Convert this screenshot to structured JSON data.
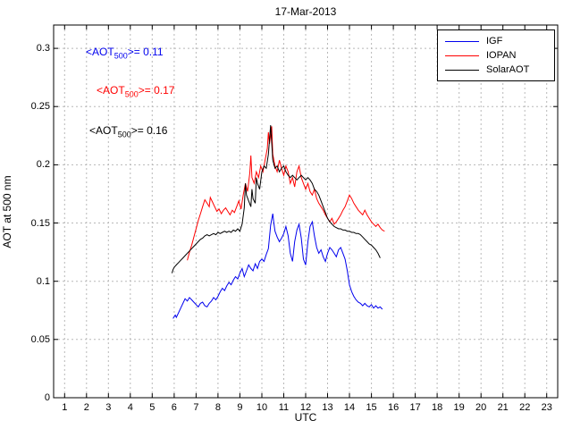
{
  "title": "17-Mar-2013",
  "xlabel": "UTC",
  "ylabel": "AOT at 500 nm",
  "chart_data": {
    "type": "line",
    "title": "17-Mar-2013",
    "xlabel": "UTC",
    "ylabel": "AOT at 500 nm",
    "xlim": [
      0.5,
      23.5
    ],
    "ylim": [
      0,
      0.32
    ],
    "xticks": [
      1,
      2,
      3,
      4,
      5,
      6,
      7,
      8,
      9,
      10,
      11,
      12,
      13,
      14,
      15,
      16,
      17,
      18,
      19,
      20,
      21,
      22,
      23
    ],
    "xtick_labels": [
      "1",
      "2",
      "3",
      "4",
      "5",
      "6",
      "7",
      "8",
      "9",
      "10",
      "11",
      "12",
      "13",
      "14",
      "15",
      "16",
      "17",
      "18",
      "19",
      "20",
      "21",
      "22",
      "23"
    ],
    "yticks": [
      0,
      0.05,
      0.1,
      0.15,
      0.2,
      0.25,
      0.3
    ],
    "ytick_labels": [
      "0",
      "0.05",
      "0.1",
      "0.15",
      "0.2",
      "0.25",
      "0.3"
    ],
    "grid": true,
    "legend_position": "top-right",
    "grid_color": "#b8b8b8",
    "axis_color": "#000000",
    "series": [
      {
        "name": "IGF",
        "color": "#0000ee",
        "mean_aot_500": 0.11,
        "points": [
          [
            5.95,
            0.068
          ],
          [
            6.05,
            0.071
          ],
          [
            6.1,
            0.069
          ],
          [
            6.2,
            0.073
          ],
          [
            6.3,
            0.077
          ],
          [
            6.4,
            0.081
          ],
          [
            6.5,
            0.085
          ],
          [
            6.6,
            0.083
          ],
          [
            6.7,
            0.086
          ],
          [
            6.8,
            0.084
          ],
          [
            6.9,
            0.082
          ],
          [
            7.0,
            0.08
          ],
          [
            7.1,
            0.078
          ],
          [
            7.2,
            0.081
          ],
          [
            7.3,
            0.082
          ],
          [
            7.4,
            0.079
          ],
          [
            7.5,
            0.078
          ],
          [
            7.6,
            0.081
          ],
          [
            7.7,
            0.083
          ],
          [
            7.8,
            0.086
          ],
          [
            7.9,
            0.084
          ],
          [
            8.0,
            0.087
          ],
          [
            8.1,
            0.091
          ],
          [
            8.2,
            0.094
          ],
          [
            8.3,
            0.092
          ],
          [
            8.4,
            0.096
          ],
          [
            8.5,
            0.099
          ],
          [
            8.6,
            0.097
          ],
          [
            8.7,
            0.101
          ],
          [
            8.8,
            0.104
          ],
          [
            8.9,
            0.102
          ],
          [
            9.0,
            0.107
          ],
          [
            9.1,
            0.111
          ],
          [
            9.2,
            0.104
          ],
          [
            9.3,
            0.109
          ],
          [
            9.4,
            0.114
          ],
          [
            9.5,
            0.111
          ],
          [
            9.6,
            0.109
          ],
          [
            9.7,
            0.115
          ],
          [
            9.8,
            0.111
          ],
          [
            9.9,
            0.117
          ],
          [
            10.0,
            0.119
          ],
          [
            10.1,
            0.117
          ],
          [
            10.2,
            0.123
          ],
          [
            10.3,
            0.128
          ],
          [
            10.4,
            0.148
          ],
          [
            10.5,
            0.158
          ],
          [
            10.55,
            0.15
          ],
          [
            10.6,
            0.143
          ],
          [
            10.7,
            0.138
          ],
          [
            10.8,
            0.134
          ],
          [
            10.9,
            0.137
          ],
          [
            11.0,
            0.141
          ],
          [
            11.1,
            0.147
          ],
          [
            11.2,
            0.139
          ],
          [
            11.3,
            0.124
          ],
          [
            11.4,
            0.117
          ],
          [
            11.5,
            0.134
          ],
          [
            11.6,
            0.144
          ],
          [
            11.7,
            0.149
          ],
          [
            11.8,
            0.137
          ],
          [
            11.9,
            0.119
          ],
          [
            12.0,
            0.114
          ],
          [
            12.1,
            0.134
          ],
          [
            12.2,
            0.147
          ],
          [
            12.3,
            0.151
          ],
          [
            12.4,
            0.139
          ],
          [
            12.5,
            0.129
          ],
          [
            12.6,
            0.124
          ],
          [
            12.7,
            0.127
          ],
          [
            12.8,
            0.121
          ],
          [
            12.9,
            0.117
          ],
          [
            13.0,
            0.124
          ],
          [
            13.1,
            0.129
          ],
          [
            13.2,
            0.127
          ],
          [
            13.3,
            0.124
          ],
          [
            13.4,
            0.121
          ],
          [
            13.5,
            0.127
          ],
          [
            13.6,
            0.129
          ],
          [
            13.7,
            0.124
          ],
          [
            13.8,
            0.119
          ],
          [
            13.9,
            0.109
          ],
          [
            14.0,
            0.097
          ],
          [
            14.1,
            0.091
          ],
          [
            14.2,
            0.087
          ],
          [
            14.3,
            0.084
          ],
          [
            14.4,
            0.082
          ],
          [
            14.5,
            0.081
          ],
          [
            14.6,
            0.079
          ],
          [
            14.7,
            0.081
          ],
          [
            14.8,
            0.079
          ],
          [
            14.9,
            0.078
          ],
          [
            15.0,
            0.08
          ],
          [
            15.1,
            0.077
          ],
          [
            15.2,
            0.079
          ],
          [
            15.3,
            0.077
          ],
          [
            15.4,
            0.078
          ],
          [
            15.5,
            0.076
          ]
        ]
      },
      {
        "name": "IOPAN",
        "color": "#ff0000",
        "mean_aot_500": 0.17,
        "points": [
          [
            6.6,
            0.118
          ],
          [
            6.7,
            0.125
          ],
          [
            6.8,
            0.131
          ],
          [
            6.9,
            0.138
          ],
          [
            7.0,
            0.145
          ],
          [
            7.1,
            0.152
          ],
          [
            7.2,
            0.158
          ],
          [
            7.3,
            0.164
          ],
          [
            7.4,
            0.17
          ],
          [
            7.5,
            0.167
          ],
          [
            7.6,
            0.164
          ],
          [
            7.65,
            0.172
          ],
          [
            7.75,
            0.168
          ],
          [
            7.85,
            0.164
          ],
          [
            7.95,
            0.16
          ],
          [
            8.05,
            0.162
          ],
          [
            8.15,
            0.158
          ],
          [
            8.25,
            0.161
          ],
          [
            8.35,
            0.163
          ],
          [
            8.45,
            0.16
          ],
          [
            8.55,
            0.157
          ],
          [
            8.65,
            0.161
          ],
          [
            8.75,
            0.159
          ],
          [
            8.85,
            0.164
          ],
          [
            8.95,
            0.169
          ],
          [
            9.05,
            0.162
          ],
          [
            9.15,
            0.174
          ],
          [
            9.25,
            0.184
          ],
          [
            9.35,
            0.177
          ],
          [
            9.45,
            0.193
          ],
          [
            9.5,
            0.208
          ],
          [
            9.55,
            0.189
          ],
          [
            9.65,
            0.184
          ],
          [
            9.75,
            0.194
          ],
          [
            9.85,
            0.189
          ],
          [
            9.95,
            0.199
          ],
          [
            10.05,
            0.194
          ],
          [
            10.15,
            0.204
          ],
          [
            10.25,
            0.214
          ],
          [
            10.3,
            0.228
          ],
          [
            10.35,
            0.218
          ],
          [
            10.45,
            0.233
          ],
          [
            10.5,
            0.209
          ],
          [
            10.6,
            0.199
          ],
          [
            10.7,
            0.194
          ],
          [
            10.8,
            0.204
          ],
          [
            10.9,
            0.197
          ],
          [
            11.0,
            0.191
          ],
          [
            11.1,
            0.199
          ],
          [
            11.2,
            0.194
          ],
          [
            11.3,
            0.184
          ],
          [
            11.4,
            0.189
          ],
          [
            11.5,
            0.181
          ],
          [
            11.6,
            0.194
          ],
          [
            11.7,
            0.199
          ],
          [
            11.8,
            0.189
          ],
          [
            11.9,
            0.184
          ],
          [
            12.0,
            0.179
          ],
          [
            12.1,
            0.184
          ],
          [
            12.2,
            0.177
          ],
          [
            12.3,
            0.174
          ],
          [
            12.4,
            0.179
          ],
          [
            12.5,
            0.171
          ],
          [
            12.6,
            0.167
          ],
          [
            12.7,
            0.164
          ],
          [
            12.8,
            0.161
          ],
          [
            12.9,
            0.157
          ],
          [
            13.0,
            0.154
          ],
          [
            13.1,
            0.151
          ],
          [
            13.2,
            0.154
          ],
          [
            13.3,
            0.149
          ],
          [
            13.4,
            0.151
          ],
          [
            13.5,
            0.154
          ],
          [
            13.6,
            0.157
          ],
          [
            13.7,
            0.161
          ],
          [
            13.8,
            0.164
          ],
          [
            13.9,
            0.169
          ],
          [
            14.0,
            0.174
          ],
          [
            14.1,
            0.171
          ],
          [
            14.2,
            0.167
          ],
          [
            14.3,
            0.164
          ],
          [
            14.4,
            0.161
          ],
          [
            14.5,
            0.159
          ],
          [
            14.6,
            0.157
          ],
          [
            14.7,
            0.161
          ],
          [
            14.8,
            0.157
          ],
          [
            14.9,
            0.154
          ],
          [
            15.0,
            0.151
          ],
          [
            15.1,
            0.149
          ],
          [
            15.2,
            0.147
          ],
          [
            15.3,
            0.149
          ],
          [
            15.4,
            0.146
          ],
          [
            15.5,
            0.144
          ],
          [
            15.6,
            0.143
          ]
        ]
      },
      {
        "name": "SolarAOT",
        "color": "#000000",
        "mean_aot_500": 0.16,
        "points": [
          [
            5.9,
            0.107
          ],
          [
            5.95,
            0.11
          ],
          [
            6.0,
            0.112
          ],
          [
            6.1,
            0.114
          ],
          [
            6.2,
            0.116
          ],
          [
            6.3,
            0.118
          ],
          [
            6.4,
            0.12
          ],
          [
            6.5,
            0.122
          ],
          [
            6.6,
            0.124
          ],
          [
            6.7,
            0.126
          ],
          [
            6.8,
            0.128
          ],
          [
            6.9,
            0.13
          ],
          [
            7.0,
            0.132
          ],
          [
            7.1,
            0.134
          ],
          [
            7.2,
            0.136
          ],
          [
            7.3,
            0.137
          ],
          [
            7.4,
            0.139
          ],
          [
            7.5,
            0.14
          ],
          [
            7.6,
            0.139
          ],
          [
            7.7,
            0.14
          ],
          [
            7.8,
            0.141
          ],
          [
            7.9,
            0.14
          ],
          [
            8.0,
            0.142
          ],
          [
            8.1,
            0.141
          ],
          [
            8.2,
            0.142
          ],
          [
            8.3,
            0.143
          ],
          [
            8.4,
            0.142
          ],
          [
            8.5,
            0.143
          ],
          [
            8.6,
            0.142
          ],
          [
            8.7,
            0.144
          ],
          [
            8.8,
            0.143
          ],
          [
            8.9,
            0.145
          ],
          [
            9.0,
            0.143
          ],
          [
            9.1,
            0.149
          ],
          [
            9.2,
            0.163
          ],
          [
            9.25,
            0.184
          ],
          [
            9.3,
            0.174
          ],
          [
            9.4,
            0.169
          ],
          [
            9.5,
            0.164
          ],
          [
            9.55,
            0.179
          ],
          [
            9.6,
            0.171
          ],
          [
            9.7,
            0.167
          ],
          [
            9.75,
            0.189
          ],
          [
            9.8,
            0.184
          ],
          [
            9.9,
            0.179
          ],
          [
            10.0,
            0.194
          ],
          [
            10.1,
            0.199
          ],
          [
            10.2,
            0.197
          ],
          [
            10.3,
            0.209
          ],
          [
            10.4,
            0.234
          ],
          [
            10.45,
            0.219
          ],
          [
            10.5,
            0.204
          ],
          [
            10.6,
            0.197
          ],
          [
            10.7,
            0.199
          ],
          [
            10.8,
            0.194
          ],
          [
            10.9,
            0.197
          ],
          [
            11.0,
            0.199
          ],
          [
            11.1,
            0.194
          ],
          [
            11.2,
            0.191
          ],
          [
            11.3,
            0.189
          ],
          [
            11.4,
            0.191
          ],
          [
            11.5,
            0.189
          ],
          [
            11.6,
            0.187
          ],
          [
            11.7,
            0.189
          ],
          [
            11.8,
            0.191
          ],
          [
            11.9,
            0.189
          ],
          [
            12.0,
            0.187
          ],
          [
            12.1,
            0.189
          ],
          [
            12.2,
            0.187
          ],
          [
            12.3,
            0.184
          ],
          [
            12.4,
            0.179
          ],
          [
            12.5,
            0.177
          ],
          [
            12.6,
            0.174
          ],
          [
            12.7,
            0.169
          ],
          [
            12.8,
            0.164
          ],
          [
            12.9,
            0.159
          ],
          [
            13.0,
            0.154
          ],
          [
            13.1,
            0.151
          ],
          [
            13.2,
            0.149
          ],
          [
            13.3,
            0.147
          ],
          [
            13.4,
            0.146
          ],
          [
            13.5,
            0.145
          ],
          [
            13.6,
            0.145
          ],
          [
            13.7,
            0.144
          ],
          [
            13.8,
            0.144
          ],
          [
            13.9,
            0.143
          ],
          [
            14.0,
            0.143
          ],
          [
            14.1,
            0.142
          ],
          [
            14.2,
            0.142
          ],
          [
            14.3,
            0.141
          ],
          [
            14.4,
            0.141
          ],
          [
            14.5,
            0.14
          ],
          [
            14.6,
            0.138
          ],
          [
            14.7,
            0.136
          ],
          [
            14.8,
            0.134
          ],
          [
            14.9,
            0.132
          ],
          [
            15.0,
            0.131
          ],
          [
            15.1,
            0.129
          ],
          [
            15.2,
            0.127
          ],
          [
            15.3,
            0.124
          ],
          [
            15.4,
            0.12
          ]
        ]
      }
    ],
    "annotations": [
      {
        "prefix": "<AOT",
        "sub": "500",
        "suffix": ">= 0.11",
        "color": "#0000ee",
        "x": 1.95,
        "y": 0.296
      },
      {
        "prefix": "<AOT",
        "sub": "500",
        "suffix": ">= 0.17",
        "color": "#ff0000",
        "x": 2.45,
        "y": 0.263
      },
      {
        "prefix": "<AOT",
        "sub": "500",
        "suffix": ">= 0.16",
        "color": "#000000",
        "x": 2.15,
        "y": 0.229
      }
    ]
  }
}
